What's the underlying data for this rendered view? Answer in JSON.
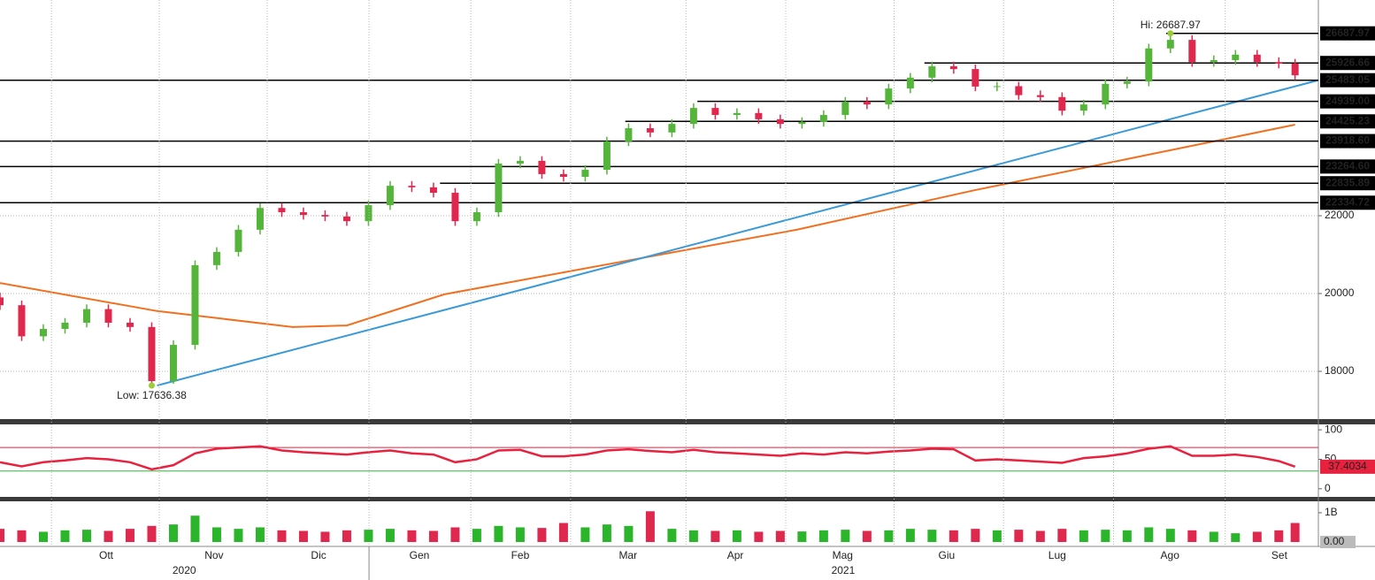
{
  "chart_data": [
    {
      "type": "candlestick",
      "xlim": [
        0,
        243.3
      ],
      "ylim": [
        16773,
        27545
      ],
      "yticks": [
        18000,
        20000,
        22000
      ],
      "up_color": "#55b53a",
      "down_color": "#e0284f",
      "x": [
        0,
        4,
        8,
        12,
        16,
        20,
        24,
        28,
        32,
        36,
        40,
        44,
        48,
        52,
        56,
        60,
        64,
        68,
        72,
        76,
        80,
        84,
        88,
        92,
        96,
        100,
        104,
        108,
        112,
        116,
        120,
        124,
        128,
        132,
        136,
        140,
        144,
        148,
        152,
        156,
        160,
        164,
        168,
        172,
        176,
        180,
        184,
        188,
        192,
        196,
        200,
        204,
        208,
        212,
        216,
        220,
        224,
        228,
        232,
        236,
        239
      ],
      "ohlc": [
        [
          19900,
          20020,
          19580,
          19700
        ],
        [
          19700,
          19820,
          18780,
          18900
        ],
        [
          18900,
          19210,
          18780,
          19090
        ],
        [
          19090,
          19370,
          18970,
          19250
        ],
        [
          19250,
          19720,
          19130,
          19600
        ],
        [
          19600,
          19720,
          19130,
          19250
        ],
        [
          19250,
          19370,
          19020,
          19140
        ],
        [
          19140,
          19260,
          17636.38,
          17750
        ],
        [
          17750,
          18800,
          17680,
          18680
        ],
        [
          18680,
          20850,
          18560,
          20730
        ],
        [
          20730,
          21190,
          20610,
          21070
        ],
        [
          21070,
          21760,
          20950,
          21640
        ],
        [
          21640,
          22320,
          21520,
          22200
        ],
        [
          22200,
          22320,
          21970,
          22090
        ],
        [
          22090,
          22210,
          21900,
          22020
        ],
        [
          22020,
          22140,
          21860,
          21980
        ],
        [
          21980,
          22100,
          21740,
          21860
        ],
        [
          21860,
          22390,
          21740,
          22270
        ],
        [
          22270,
          22890,
          22150,
          22770
        ],
        [
          22770,
          22890,
          22610,
          22730
        ],
        [
          22730,
          22850,
          22470,
          22590
        ],
        [
          22590,
          22710,
          21740,
          21860
        ],
        [
          21860,
          22210,
          21740,
          22090
        ],
        [
          22090,
          23460,
          21970,
          23340
        ],
        [
          23340,
          23530,
          23220,
          23410
        ],
        [
          23410,
          23530,
          22950,
          23070
        ],
        [
          23070,
          23190,
          22880,
          23000
        ],
        [
          23000,
          23300,
          22880,
          23180
        ],
        [
          23180,
          24030,
          23060,
          23910
        ],
        [
          23910,
          24370,
          23790,
          24250
        ],
        [
          24250,
          24370,
          24020,
          24140
        ],
        [
          24140,
          24480,
          24020,
          24360
        ],
        [
          24360,
          24890,
          24240,
          24770
        ],
        [
          24770,
          24890,
          24470,
          24590
        ],
        [
          24590,
          24760,
          24470,
          24640
        ],
        [
          24640,
          24760,
          24360,
          24480
        ],
        [
          24480,
          24600,
          24240,
          24360
        ],
        [
          24360,
          24530,
          24240,
          24410
        ],
        [
          24410,
          24710,
          24290,
          24590
        ],
        [
          24590,
          25050,
          24470,
          24930
        ],
        [
          24930,
          25050,
          24740,
          24860
        ],
        [
          24860,
          25390,
          24740,
          25270
        ],
        [
          25270,
          25670,
          25150,
          25550
        ],
        [
          25550,
          25960,
          25430,
          25840
        ],
        [
          25840,
          25960,
          25650,
          25770
        ],
        [
          25770,
          25890,
          25200,
          25320
        ],
        [
          25320,
          25440,
          25200,
          25330
        ],
        [
          25330,
          25440,
          24980,
          25100
        ],
        [
          25100,
          25220,
          24930,
          25050
        ],
        [
          25050,
          25170,
          24580,
          24700
        ],
        [
          24700,
          24980,
          24580,
          24860
        ],
        [
          24860,
          25510,
          24740,
          25390
        ],
        [
          25390,
          25570,
          25270,
          25450
        ],
        [
          25450,
          26420,
          25330,
          26300
        ],
        [
          26300,
          26687.97,
          26180,
          26520
        ],
        [
          26520,
          26640,
          25830,
          25950
        ],
        [
          25950,
          26120,
          25830,
          26000
        ],
        [
          26000,
          26260,
          25880,
          26140
        ],
        [
          26140,
          26260,
          25830,
          25950
        ],
        [
          25950,
          26070,
          25790,
          25910
        ],
        [
          25910,
          26030,
          25490,
          25610
        ]
      ],
      "levels": [
        26687.97,
        25926.66,
        25483.05,
        {
          "value": 24939,
          "label": "24939.00"
        },
        24425.23,
        {
          "value": 23918.6,
          "label": "23918.60"
        },
        {
          "value": 23264.6,
          "label": "23264.60"
        },
        22835.89,
        22334.72
      ],
      "level_starts": [
        215.2,
        170.6,
        0,
        128.7,
        115.4,
        0,
        0,
        81.2,
        0
      ],
      "level_color": "#000000",
      "hi_label": "Hi: 26687.97",
      "low_label": "Low: 17636.38",
      "annotation_color": "#9acd32",
      "overlays": [
        {
          "color": "#f07020",
          "x": [
            0,
            29,
            54,
            64,
            82,
            114,
            147,
            180,
            212,
            239
          ],
          "values": [
            20270,
            19550,
            19140,
            19180,
            19980,
            20800,
            21640,
            22660,
            23570,
            24340
          ]
        },
        {
          "color": "#3a9ad9",
          "x": [
            29,
            243.3
          ],
          "values": [
            17636.38,
            25483.05
          ]
        }
      ]
    },
    {
      "type": "line",
      "xlim": [
        0,
        243.3
      ],
      "ylim": [
        -13.8,
        107.7
      ],
      "yticks": [
        0,
        50,
        100
      ],
      "color": "#e8213f",
      "upper": 70,
      "upper_color": "#e8213f",
      "lower": 30,
      "lower_color": "#3cb043",
      "x": [
        0,
        4,
        8,
        12,
        16,
        20,
        24,
        28,
        32,
        36,
        40,
        44,
        48,
        52,
        56,
        60,
        64,
        68,
        72,
        76,
        80,
        84,
        88,
        92,
        96,
        100,
        104,
        108,
        112,
        116,
        120,
        124,
        128,
        132,
        136,
        140,
        144,
        148,
        152,
        156,
        160,
        164,
        168,
        172,
        176,
        180,
        184,
        188,
        192,
        196,
        200,
        204,
        208,
        212,
        216,
        220,
        224,
        228,
        232,
        236,
        239
      ],
      "values": [
        45,
        38,
        45,
        48,
        52,
        50,
        45,
        33,
        40,
        60,
        68,
        70,
        72,
        65,
        62,
        60,
        58,
        62,
        65,
        60,
        58,
        45,
        50,
        65,
        66,
        55,
        55,
        58,
        65,
        67,
        64,
        62,
        66,
        62,
        60,
        58,
        56,
        60,
        58,
        62,
        60,
        63,
        65,
        68,
        67,
        48,
        50,
        48,
        46,
        44,
        52,
        55,
        60,
        68,
        72,
        56,
        56,
        58,
        54,
        47,
        37.4034
      ]
    },
    {
      "type": "bar",
      "xlim": [
        0,
        243.3
      ],
      "ylim": [
        -0.15,
        1.36
      ],
      "yticks": [
        {
          "value": 0,
          "label": "0.00"
        },
        {
          "value": 1,
          "label": "1B"
        }
      ],
      "up_color": "#2bb52b",
      "down_color": "#e0284f",
      "x": [
        0,
        4,
        8,
        12,
        16,
        20,
        24,
        28,
        32,
        36,
        40,
        44,
        48,
        52,
        56,
        60,
        64,
        68,
        72,
        76,
        80,
        84,
        88,
        92,
        96,
        100,
        104,
        108,
        112,
        116,
        120,
        124,
        128,
        132,
        136,
        140,
        144,
        148,
        152,
        156,
        160,
        164,
        168,
        172,
        176,
        180,
        184,
        188,
        192,
        196,
        200,
        204,
        208,
        212,
        216,
        220,
        224,
        228,
        232,
        236,
        239
      ],
      "values": [
        0.45,
        0.4,
        0.35,
        0.4,
        0.42,
        0.38,
        0.45,
        0.55,
        0.6,
        0.9,
        0.5,
        0.45,
        0.5,
        0.4,
        0.38,
        0.35,
        0.4,
        0.42,
        0.45,
        0.4,
        0.38,
        0.5,
        0.45,
        0.55,
        0.5,
        0.48,
        0.65,
        0.5,
        0.6,
        0.55,
        1.05,
        0.45,
        0.4,
        0.38,
        0.4,
        0.35,
        0.38,
        0.36,
        0.4,
        0.42,
        0.38,
        0.4,
        0.45,
        0.42,
        0.4,
        0.45,
        0.4,
        0.42,
        0.38,
        0.45,
        0.4,
        0.42,
        0.4,
        0.5,
        0.45,
        0.4,
        0.35,
        0.3,
        0.35,
        0.4,
        0.65
      ],
      "xticks": [
        {
          "value": 19.6,
          "label": "Ott"
        },
        {
          "value": 39.5,
          "label": "Nov"
        },
        {
          "value": 58.8,
          "label": "Dic"
        },
        {
          "value": 77.4,
          "label": "Gen"
        },
        {
          "value": 96,
          "label": "Feb"
        },
        {
          "value": 115.9,
          "label": "Mar"
        },
        {
          "value": 135.7,
          "label": "Apr"
        },
        {
          "value": 155.5,
          "label": "Mag"
        },
        {
          "value": 174.7,
          "label": "Giu"
        },
        {
          "value": 195.1,
          "label": "Lug"
        },
        {
          "value": 215.9,
          "label": "Ago"
        },
        {
          "value": 236.1,
          "label": "Set"
        }
      ],
      "xgrid": [
        9.5,
        29.4,
        49.3,
        68.1,
        86.9,
        105.3,
        126.6,
        145,
        165,
        185.2,
        205.5,
        226.1
      ],
      "years": [
        {
          "value": 34,
          "label": "2020"
        },
        {
          "value": 155.6,
          "label": "2021"
        }
      ]
    }
  ]
}
